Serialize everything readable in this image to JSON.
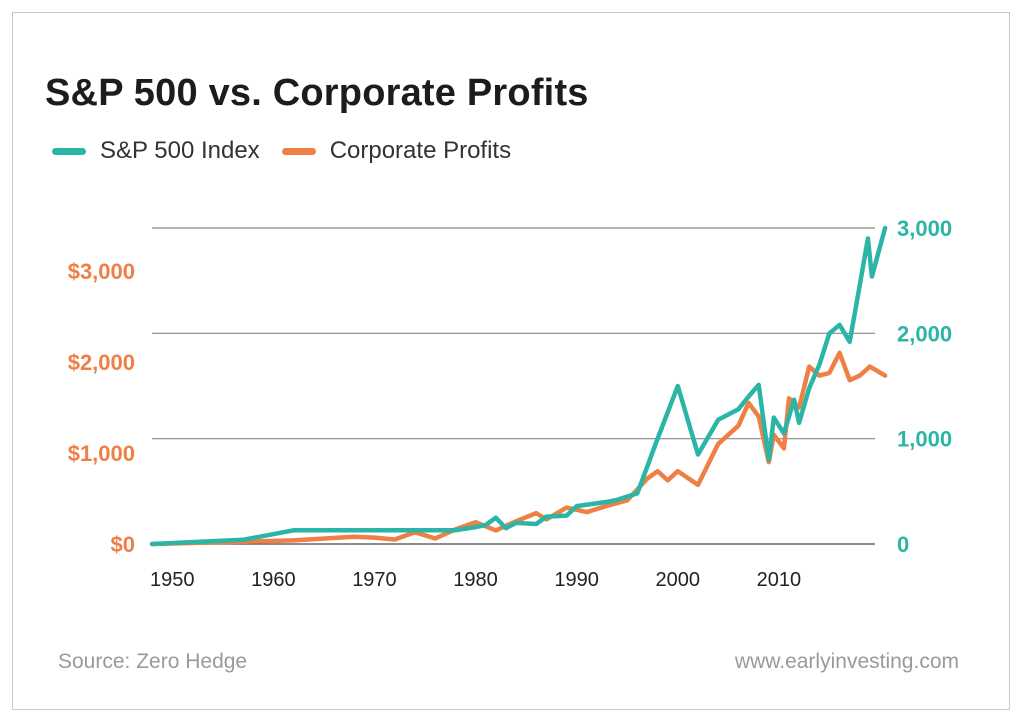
{
  "title": "S&P 500 vs. Corporate Profits",
  "source": "Source: Zero Hedge",
  "website": "www.earlyinvesting.com",
  "colors": {
    "sp500": "#2bb5a6",
    "profits": "#ee7f45",
    "grid": "#888888"
  },
  "chart_data": {
    "type": "line",
    "title": "S&P 500 vs. Corporate Profits",
    "legend": "top-left",
    "grid": true,
    "x_ticks": [
      "1950",
      "1960",
      "1970",
      "1980",
      "1990",
      "2000",
      "2010"
    ],
    "xlim": [
      1948,
      2020
    ],
    "left_axis": {
      "ticks": [
        "$0",
        "$1,000",
        "$2,000",
        "$3,000"
      ],
      "ylim": [
        0,
        3500
      ]
    },
    "right_axis": {
      "ticks": [
        "0",
        "1,000",
        "2,000",
        "3,000"
      ],
      "ylim": [
        0,
        3000
      ]
    },
    "series": [
      {
        "name": "S&P 500 Index",
        "axis": "right",
        "points": [
          [
            1948,
            0
          ],
          [
            1957,
            40
          ],
          [
            1962,
            130
          ],
          [
            1970,
            130
          ],
          [
            1975,
            130
          ],
          [
            1978,
            130
          ],
          [
            1980,
            160
          ],
          [
            1981,
            180
          ],
          [
            1982,
            250
          ],
          [
            1983,
            150
          ],
          [
            1984,
            200
          ],
          [
            1986,
            190
          ],
          [
            1987,
            260
          ],
          [
            1989,
            270
          ],
          [
            1990,
            360
          ],
          [
            1993,
            400
          ],
          [
            1994,
            420
          ],
          [
            1996,
            480
          ],
          [
            1998,
            1000
          ],
          [
            2000,
            1500
          ],
          [
            2002,
            850
          ],
          [
            2004,
            1180
          ],
          [
            2006,
            1280
          ],
          [
            2007,
            1400
          ],
          [
            2008,
            1510
          ],
          [
            2009,
            800
          ],
          [
            2009.5,
            1200
          ],
          [
            2010.5,
            1050
          ],
          [
            2011.5,
            1370
          ],
          [
            2012,
            1150
          ],
          [
            2013,
            1480
          ],
          [
            2014,
            1700
          ],
          [
            2015,
            2000
          ],
          [
            2016,
            2080
          ],
          [
            2017,
            1920
          ],
          [
            2018,
            2460
          ],
          [
            2018.8,
            2900
          ],
          [
            2019.2,
            2540
          ],
          [
            2020.5,
            3000
          ]
        ]
      },
      {
        "name": "Corporate Profits",
        "axis": "left",
        "points": [
          [
            1948,
            0
          ],
          [
            1962,
            40
          ],
          [
            1968,
            80
          ],
          [
            1970,
            70
          ],
          [
            1972,
            50
          ],
          [
            1974,
            130
          ],
          [
            1976,
            60
          ],
          [
            1978,
            160
          ],
          [
            1980,
            240
          ],
          [
            1982,
            150
          ],
          [
            1984,
            250
          ],
          [
            1986,
            340
          ],
          [
            1987,
            270
          ],
          [
            1989,
            400
          ],
          [
            1991,
            350
          ],
          [
            1993,
            420
          ],
          [
            1995,
            480
          ],
          [
            1997,
            720
          ],
          [
            1998,
            800
          ],
          [
            1999,
            700
          ],
          [
            2000,
            800
          ],
          [
            2002,
            650
          ],
          [
            2004,
            1100
          ],
          [
            2006,
            1300
          ],
          [
            2007,
            1550
          ],
          [
            2008,
            1400
          ],
          [
            2009,
            900
          ],
          [
            2009.5,
            1200
          ],
          [
            2010.5,
            1050
          ],
          [
            2011,
            1600
          ],
          [
            2012,
            1500
          ],
          [
            2013,
            1950
          ],
          [
            2014,
            1850
          ],
          [
            2015,
            1880
          ],
          [
            2016,
            2100
          ],
          [
            2017,
            1800
          ],
          [
            2018,
            1850
          ],
          [
            2019,
            1950
          ],
          [
            2020.5,
            1850
          ]
        ]
      }
    ]
  }
}
